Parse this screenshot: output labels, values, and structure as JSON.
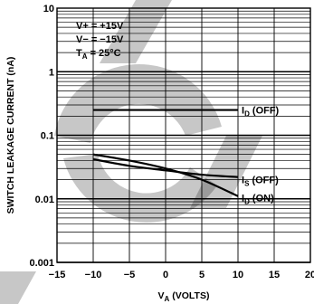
{
  "chart_data": {
    "type": "line",
    "title": "",
    "ylabel": "SWITCH LEAKAGE CURRENT (nA)",
    "xlabel_main": "V",
    "xlabel_sub": "A",
    "xlabel_tail": " (VOLTS)",
    "x_ticks": [
      -15,
      -10,
      -5,
      0,
      5,
      10,
      15,
      20
    ],
    "x_tick_labels": [
      "−15",
      "−10",
      "−5",
      "0",
      "5",
      "10",
      "15",
      "20"
    ],
    "xlim": [
      -15,
      20
    ],
    "y_scale": "log",
    "ylim": [
      0.001,
      10
    ],
    "y_ticks": [
      0.001,
      0.01,
      0.1,
      1,
      10
    ],
    "y_tick_labels": [
      "0.001",
      "0.01",
      "0.1",
      "1",
      "10"
    ],
    "conditions": {
      "line1": "V+ = +15V",
      "line2": "V− = −15V",
      "line3_main": "T",
      "line3_sub": "A",
      "line3_tail": " = 25°C"
    },
    "series": [
      {
        "label_main": "I",
        "label_sub": "D",
        "label_tail": " (OFF)",
        "x": [
          -10,
          -5,
          0,
          5,
          10
        ],
        "y": [
          0.25,
          0.25,
          0.25,
          0.25,
          0.25
        ],
        "label_x": 10.5,
        "label_y": 0.25
      },
      {
        "label_main": "I",
        "label_sub": "S",
        "label_tail": " (OFF)",
        "x": [
          -10,
          -5,
          0,
          5,
          10
        ],
        "y": [
          0.042,
          0.033,
          0.028,
          0.024,
          0.022
        ],
        "label_x": 10.5,
        "label_y": 0.02
      },
      {
        "label_main": "I",
        "label_sub": "D",
        "label_tail": " (ON)",
        "x": [
          -10,
          -5,
          0,
          5,
          10
        ],
        "y": [
          0.05,
          0.04,
          0.03,
          0.02,
          0.011
        ],
        "label_x": 10.5,
        "label_y": 0.0105
      }
    ]
  }
}
